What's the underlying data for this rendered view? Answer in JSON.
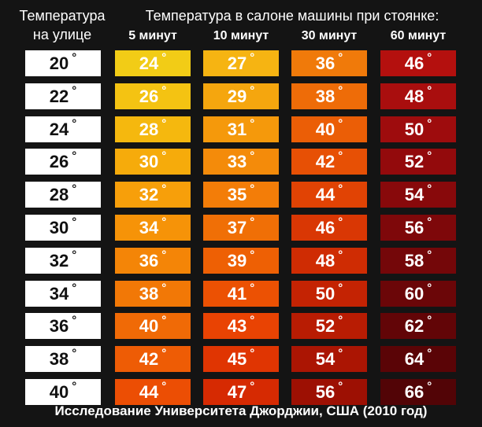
{
  "header": {
    "outside_label": "Температура\nна улице",
    "title": "Температура в салоне машины при стоянке:"
  },
  "degree_symbol": "°",
  "footer": "Исследование Университета Джорджии, США (2010 год)",
  "colors": {
    "col_5": [
      "#f2cc16",
      "#f4c312",
      "#f5b80e",
      "#f6ab0b",
      "#f79f0a",
      "#f69308",
      "#f48507",
      "#f27806",
      "#f06a06",
      "#ee5c05",
      "#ec4e04"
    ],
    "col_10": [
      "#f6b412",
      "#f5a60e",
      "#f5990b",
      "#f48b0a",
      "#f37d08",
      "#f06f06",
      "#ee6004",
      "#ec5103",
      "#e94303",
      "#e03502",
      "#d62a02"
    ],
    "col_30": [
      "#f07a0a",
      "#ee6c08",
      "#eb5e06",
      "#e75005",
      "#e14304",
      "#d93704",
      "#cf2c03",
      "#c42303",
      "#b81c03",
      "#ab1503",
      "#9d1003"
    ],
    "col_60": [
      "#b4100e",
      "#a90e0e",
      "#9e0c0d",
      "#930a0c",
      "#88090b",
      "#7e080a",
      "#740709",
      "#6b0608",
      "#620507",
      "#5a0406",
      "#520406"
    ]
  },
  "chart_data": {
    "type": "table",
    "title": "Температура в салоне машины при стоянке:",
    "row_header": "Температура на улице",
    "columns": [
      "5 минут",
      "10 минут",
      "30 минут",
      "60 минут"
    ],
    "rows": [
      {
        "outside": 20,
        "values": [
          24,
          27,
          36,
          46
        ]
      },
      {
        "outside": 22,
        "values": [
          26,
          29,
          38,
          48
        ]
      },
      {
        "outside": 24,
        "values": [
          28,
          31,
          40,
          50
        ]
      },
      {
        "outside": 26,
        "values": [
          30,
          33,
          42,
          52
        ]
      },
      {
        "outside": 28,
        "values": [
          32,
          35,
          44,
          54
        ]
      },
      {
        "outside": 30,
        "values": [
          34,
          37,
          46,
          56
        ]
      },
      {
        "outside": 32,
        "values": [
          36,
          39,
          48,
          58
        ]
      },
      {
        "outside": 34,
        "values": [
          38,
          41,
          50,
          60
        ]
      },
      {
        "outside": 36,
        "values": [
          40,
          43,
          52,
          62
        ]
      },
      {
        "outside": 38,
        "values": [
          42,
          45,
          54,
          64
        ]
      },
      {
        "outside": 40,
        "values": [
          44,
          47,
          56,
          66
        ]
      }
    ]
  }
}
